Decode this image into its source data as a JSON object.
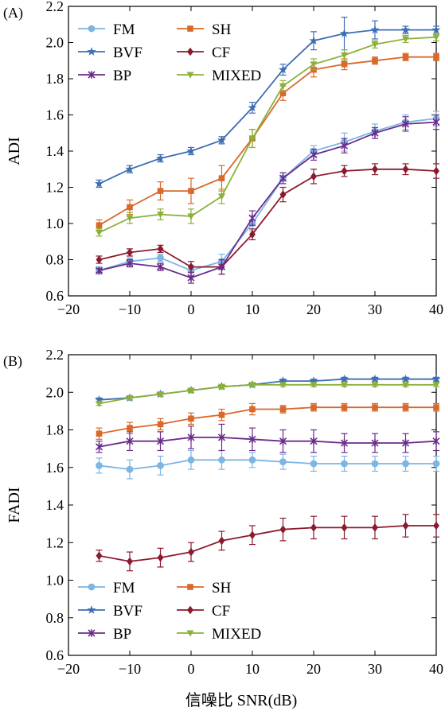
{
  "chart_data": [
    {
      "type": "line",
      "panel_label": "(A)",
      "title": "",
      "xlabel": "",
      "ylabel": "ADI",
      "xlim": [
        -20,
        40
      ],
      "ylim": [
        0.6,
        2.2
      ],
      "xticks": [
        -20,
        -10,
        0,
        10,
        20,
        30,
        40
      ],
      "yticks": [
        0.6,
        0.8,
        1.0,
        1.2,
        1.4,
        1.6,
        1.8,
        2.0,
        2.2
      ],
      "grid": false,
      "legend_position": "top-left",
      "x": [
        -15,
        -10,
        -5,
        0,
        5,
        10,
        15,
        20,
        25,
        30,
        35,
        40
      ],
      "series": [
        {
          "name": "FM",
          "color": "#7db5e3",
          "marker": "circle",
          "values": [
            0.74,
            0.79,
            0.81,
            0.74,
            0.79,
            1.0,
            1.25,
            1.4,
            1.45,
            1.51,
            1.56,
            1.58
          ],
          "errors": [
            0.02,
            0.02,
            0.02,
            0.03,
            0.04,
            0.04,
            0.03,
            0.03,
            0.05,
            0.04,
            0.04,
            0.04
          ]
        },
        {
          "name": "SH",
          "color": "#d9682a",
          "marker": "square",
          "values": [
            0.99,
            1.09,
            1.18,
            1.18,
            1.25,
            1.47,
            1.72,
            1.85,
            1.88,
            1.9,
            1.92,
            1.92
          ],
          "errors": [
            0.03,
            0.04,
            0.05,
            0.07,
            0.07,
            0.05,
            0.04,
            0.04,
            0.03,
            0.02,
            0.02,
            0.02
          ]
        },
        {
          "name": "BVF",
          "color": "#3c6eb4",
          "marker": "star",
          "values": [
            1.22,
            1.3,
            1.36,
            1.4,
            1.46,
            1.64,
            1.85,
            2.01,
            2.05,
            2.07,
            2.07,
            2.07
          ],
          "errors": [
            0.02,
            0.02,
            0.02,
            0.02,
            0.02,
            0.03,
            0.03,
            0.05,
            0.09,
            0.05,
            0.02,
            0.02
          ]
        },
        {
          "name": "CF",
          "color": "#8b1a2e",
          "marker": "diamond",
          "values": [
            0.8,
            0.84,
            0.86,
            0.76,
            0.76,
            0.94,
            1.16,
            1.26,
            1.29,
            1.3,
            1.3,
            1.29
          ],
          "errors": [
            0.02,
            0.02,
            0.02,
            0.03,
            0.04,
            0.03,
            0.04,
            0.04,
            0.03,
            0.03,
            0.03,
            0.04
          ]
        },
        {
          "name": "BP",
          "color": "#6a2c8a",
          "marker": "cross",
          "values": [
            0.74,
            0.78,
            0.76,
            0.7,
            0.76,
            1.03,
            1.25,
            1.38,
            1.43,
            1.5,
            1.55,
            1.56
          ],
          "errors": [
            0.01,
            0.02,
            0.02,
            0.03,
            0.04,
            0.04,
            0.03,
            0.03,
            0.04,
            0.03,
            0.04,
            0.04
          ]
        },
        {
          "name": "MIXED",
          "color": "#8bb13a",
          "marker": "triangle",
          "values": [
            0.95,
            1.03,
            1.05,
            1.04,
            1.15,
            1.47,
            1.76,
            1.88,
            1.93,
            1.99,
            2.02,
            2.03
          ],
          "errors": [
            0.02,
            0.03,
            0.03,
            0.04,
            0.04,
            0.05,
            0.03,
            0.03,
            0.03,
            0.02,
            0.02,
            0.02
          ]
        }
      ]
    },
    {
      "type": "line",
      "panel_label": "(B)",
      "title": "",
      "xlabel": "信噪比 SNR(dB)",
      "ylabel": "FADI",
      "xlim": [
        -20,
        40
      ],
      "ylim": [
        0.6,
        2.2
      ],
      "xticks": [
        -20,
        -10,
        0,
        10,
        20,
        30,
        40
      ],
      "yticks": [
        0.6,
        0.8,
        1.0,
        1.2,
        1.4,
        1.6,
        1.8,
        2.0,
        2.2
      ],
      "grid": false,
      "legend_position": "bottom-left",
      "x": [
        -15,
        -10,
        -5,
        0,
        5,
        10,
        15,
        20,
        25,
        30,
        35,
        40
      ],
      "series": [
        {
          "name": "FM",
          "color": "#7db5e3",
          "marker": "circle",
          "values": [
            1.61,
            1.59,
            1.61,
            1.64,
            1.64,
            1.64,
            1.63,
            1.62,
            1.62,
            1.62,
            1.62,
            1.62
          ],
          "errors": [
            0.04,
            0.05,
            0.05,
            0.05,
            0.05,
            0.04,
            0.04,
            0.04,
            0.04,
            0.04,
            0.04,
            0.04
          ]
        },
        {
          "name": "SH",
          "color": "#d9682a",
          "marker": "square",
          "values": [
            1.78,
            1.81,
            1.83,
            1.86,
            1.88,
            1.91,
            1.91,
            1.92,
            1.92,
            1.92,
            1.92,
            1.92
          ],
          "errors": [
            0.03,
            0.03,
            0.03,
            0.03,
            0.03,
            0.03,
            0.02,
            0.02,
            0.02,
            0.02,
            0.02,
            0.02
          ]
        },
        {
          "name": "BVF",
          "color": "#3c6eb4",
          "marker": "star",
          "values": [
            1.96,
            1.97,
            1.99,
            2.01,
            2.03,
            2.04,
            2.06,
            2.06,
            2.07,
            2.07,
            2.07,
            2.07
          ],
          "errors": [
            0.01,
            0.01,
            0.01,
            0.01,
            0.01,
            0.01,
            0.01,
            0.01,
            0.01,
            0.01,
            0.01,
            0.01
          ]
        },
        {
          "name": "CF",
          "color": "#8b1a2e",
          "marker": "diamond",
          "values": [
            1.13,
            1.1,
            1.12,
            1.15,
            1.21,
            1.24,
            1.27,
            1.28,
            1.28,
            1.28,
            1.29,
            1.29
          ],
          "errors": [
            0.03,
            0.05,
            0.05,
            0.05,
            0.05,
            0.05,
            0.06,
            0.06,
            0.06,
            0.06,
            0.06,
            0.06
          ]
        },
        {
          "name": "BP",
          "color": "#6a2c8a",
          "marker": "cross",
          "values": [
            1.71,
            1.74,
            1.74,
            1.76,
            1.76,
            1.75,
            1.74,
            1.74,
            1.73,
            1.73,
            1.73,
            1.74
          ],
          "errors": [
            0.03,
            0.05,
            0.05,
            0.06,
            0.07,
            0.06,
            0.06,
            0.06,
            0.05,
            0.05,
            0.05,
            0.05
          ]
        },
        {
          "name": "MIXED",
          "color": "#8bb13a",
          "marker": "triangle",
          "values": [
            1.94,
            1.97,
            1.99,
            2.01,
            2.03,
            2.04,
            2.04,
            2.04,
            2.04,
            2.04,
            2.04,
            2.04
          ],
          "errors": [
            0.01,
            0.01,
            0.01,
            0.01,
            0.01,
            0.01,
            0.01,
            0.01,
            0.01,
            0.01,
            0.01,
            0.01
          ]
        }
      ]
    }
  ]
}
